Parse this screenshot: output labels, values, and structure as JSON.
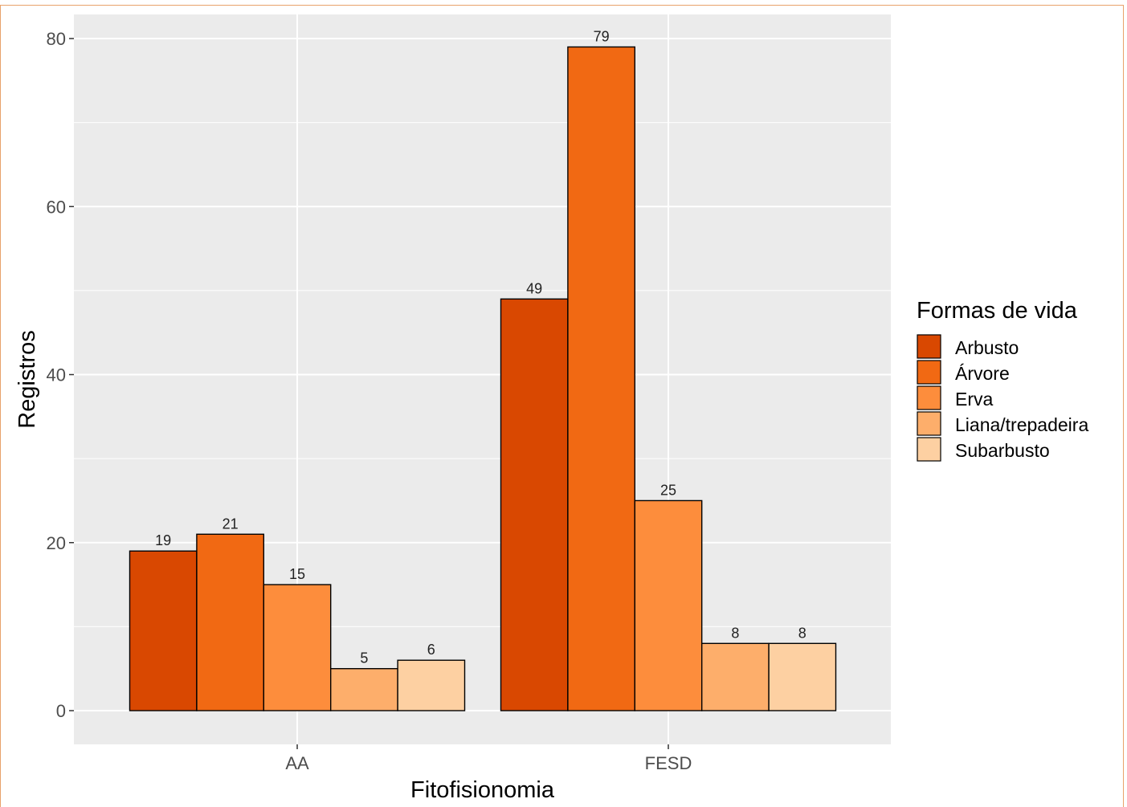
{
  "chart_data": {
    "type": "bar",
    "xlabel": "Fitofisionomia",
    "ylabel": "Registros",
    "categories": [
      "AA",
      "FESD"
    ],
    "series": [
      {
        "name": "Arbusto",
        "values": [
          19,
          49
        ],
        "color": "#d94801"
      },
      {
        "name": "Árvore",
        "values": [
          21,
          79
        ],
        "color": "#f16913"
      },
      {
        "name": "Erva",
        "values": [
          15,
          25
        ],
        "color": "#fd8d3c"
      },
      {
        "name": "Liana/trepadeira",
        "values": [
          5,
          8
        ],
        "color": "#fdae6b"
      },
      {
        "name": "Subarbusto",
        "values": [
          6,
          8
        ],
        "color": "#fdd0a2"
      }
    ],
    "ylim": [
      -3.9,
      83.9
    ],
    "yticks": [
      0,
      20,
      40,
      60,
      80
    ],
    "legend_title": "Formas de vida",
    "legend_position": "right",
    "grid": true,
    "panel_background": "#ebebeb"
  }
}
